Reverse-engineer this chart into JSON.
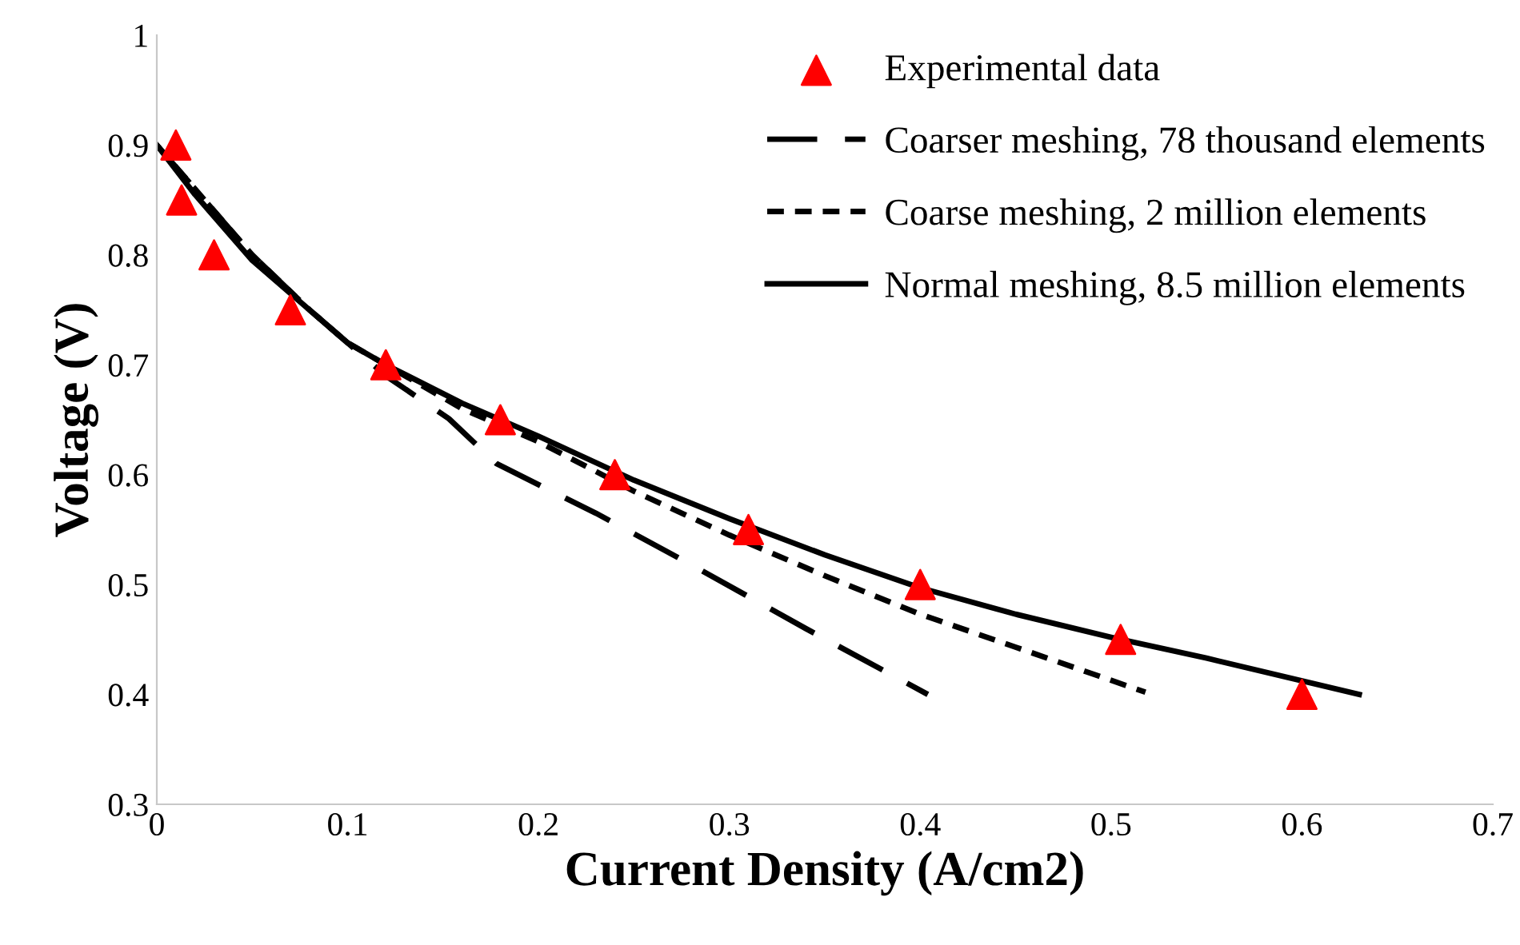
{
  "chart_data": {
    "type": "line",
    "xlabel": "Current Density (A/cm2)",
    "ylabel": "Voltage (V)",
    "xlim": [
      0,
      0.7
    ],
    "xticks": [
      0,
      0.1,
      0.2,
      0.3,
      0.4,
      0.5,
      0.6,
      0.7
    ],
    "ylim": [
      0.3,
      1
    ],
    "yticks": [
      0.3,
      0.4,
      0.5,
      0.6,
      0.7,
      0.8,
      0.9,
      1
    ],
    "grid": false,
    "legend": "top right",
    "series": [
      {
        "name": "Experimental data",
        "type": "scatter",
        "marker": "triangle",
        "color": "#ff0000",
        "x": [
          0.01,
          0.013,
          0.03,
          0.07,
          0.12,
          0.18,
          0.24,
          0.31,
          0.4,
          0.505,
          0.6
        ],
        "values": [
          0.9,
          0.85,
          0.8,
          0.75,
          0.7,
          0.65,
          0.6,
          0.55,
          0.5,
          0.45,
          0.4
        ]
      },
      {
        "name": "Coarser meshing, 78 thousand elements",
        "type": "line",
        "line_style": "dashed",
        "color": "#000000",
        "x": [
          0,
          0.02,
          0.05,
          0.08,
          0.1,
          0.12,
          0.153,
          0.178,
          0.23,
          0.278,
          0.34,
          0.404
        ],
        "values": [
          0.9,
          0.86,
          0.8,
          0.75,
          0.72,
          0.69,
          0.651,
          0.61,
          0.565,
          0.52,
          0.46,
          0.4
        ]
      },
      {
        "name": "Coarse meshing, 2 million elements",
        "type": "line",
        "line_style": "dotted",
        "color": "#000000",
        "x": [
          0,
          0.02,
          0.05,
          0.08,
          0.1,
          0.12,
          0.16,
          0.2,
          0.25,
          0.3,
          0.35,
          0.4,
          0.45,
          0.518
        ],
        "values": [
          0.9,
          0.86,
          0.8,
          0.75,
          0.72,
          0.7,
          0.66,
          0.63,
          0.585,
          0.545,
          0.508,
          0.473,
          0.443,
          0.402
        ]
      },
      {
        "name": "Normal meshing, 8.5 million elements",
        "type": "line",
        "line_style": "solid",
        "color": "#000000",
        "x": [
          0,
          0.02,
          0.05,
          0.08,
          0.1,
          0.12,
          0.16,
          0.2,
          0.25,
          0.3,
          0.35,
          0.4,
          0.45,
          0.5,
          0.55,
          0.63
        ],
        "values": [
          0.9,
          0.855,
          0.795,
          0.75,
          0.72,
          0.7,
          0.665,
          0.635,
          0.595,
          0.56,
          0.527,
          0.497,
          0.473,
          0.452,
          0.433,
          0.4
        ]
      }
    ]
  }
}
